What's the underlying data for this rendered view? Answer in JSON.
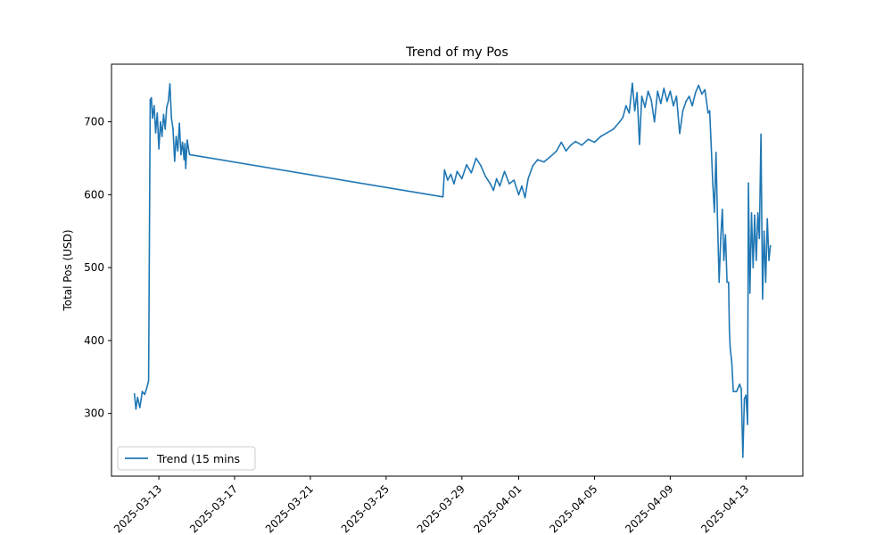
{
  "chart_data": {
    "type": "line",
    "title": "Trend of my Pos",
    "xlabel": "",
    "ylabel": "Total Pos (USD)",
    "xlim": [
      "2025-03-10T12:00",
      "2025-04-16T00:00"
    ],
    "ylim": [
      214,
      779
    ],
    "x_ticks": [
      "2025-03-13",
      "2025-03-17",
      "2025-03-21",
      "2025-03-25",
      "2025-03-29",
      "2025-04-01",
      "2025-04-05",
      "2025-04-09",
      "2025-04-13"
    ],
    "y_ticks": [
      300,
      400,
      500,
      600,
      700
    ],
    "grid": false,
    "legend_position": "lower-left",
    "color": "#1f77b4",
    "series": [
      {
        "name": "Trend (15 mins",
        "points": [
          [
            "2025-03-11T17:00",
            327
          ],
          [
            "2025-03-11T19:00",
            306
          ],
          [
            "2025-03-11T21:00",
            322
          ],
          [
            "2025-03-12T00:00",
            308
          ],
          [
            "2025-03-12T03:00",
            330
          ],
          [
            "2025-03-12T06:00",
            326
          ],
          [
            "2025-03-12T09:00",
            336
          ],
          [
            "2025-03-12T11:00",
            345
          ],
          [
            "2025-03-12T13:00",
            730
          ],
          [
            "2025-03-12T14:30",
            733
          ],
          [
            "2025-03-12T16:00",
            705
          ],
          [
            "2025-03-12T18:00",
            722
          ],
          [
            "2025-03-12T20:00",
            685
          ],
          [
            "2025-03-12T22:00",
            712
          ],
          [
            "2025-03-13T00:00",
            663
          ],
          [
            "2025-03-13T02:00",
            700
          ],
          [
            "2025-03-13T04:00",
            680
          ],
          [
            "2025-03-13T06:00",
            710
          ],
          [
            "2025-03-13T08:00",
            690
          ],
          [
            "2025-03-13T10:00",
            720
          ],
          [
            "2025-03-13T12:00",
            728
          ],
          [
            "2025-03-13T14:00",
            752
          ],
          [
            "2025-03-13T16:00",
            705
          ],
          [
            "2025-03-13T18:00",
            690
          ],
          [
            "2025-03-13T20:00",
            646
          ],
          [
            "2025-03-13T22:00",
            680
          ],
          [
            "2025-03-14T00:00",
            660
          ],
          [
            "2025-03-14T02:00",
            698
          ],
          [
            "2025-03-14T04:00",
            655
          ],
          [
            "2025-03-14T06:00",
            672
          ],
          [
            "2025-03-14T08:00",
            648
          ],
          [
            "2025-03-14T09:00",
            670
          ],
          [
            "2025-03-14T10:00",
            636
          ],
          [
            "2025-03-14T12:00",
            675
          ],
          [
            "2025-03-14T14:00",
            660
          ],
          [
            "2025-03-14T15:00",
            655
          ],
          [
            "2025-03-28T00:00",
            597
          ],
          [
            "2025-03-28T02:00",
            634
          ],
          [
            "2025-03-28T06:00",
            620
          ],
          [
            "2025-03-28T10:00",
            628
          ],
          [
            "2025-03-28T14:00",
            615
          ],
          [
            "2025-03-28T18:00",
            632
          ],
          [
            "2025-03-29T00:00",
            622
          ],
          [
            "2025-03-29T06:00",
            641
          ],
          [
            "2025-03-29T12:00",
            630
          ],
          [
            "2025-03-29T18:00",
            650
          ],
          [
            "2025-03-30T00:00",
            640
          ],
          [
            "2025-03-30T06:00",
            625
          ],
          [
            "2025-03-30T12:00",
            615
          ],
          [
            "2025-03-30T16:00",
            606
          ],
          [
            "2025-03-30T20:00",
            622
          ],
          [
            "2025-03-31T00:00",
            612
          ],
          [
            "2025-03-31T06:00",
            632
          ],
          [
            "2025-03-31T12:00",
            615
          ],
          [
            "2025-03-31T18:00",
            620
          ],
          [
            "2025-04-01T00:00",
            600
          ],
          [
            "2025-04-01T04:00",
            612
          ],
          [
            "2025-04-01T08:00",
            596
          ],
          [
            "2025-04-01T12:00",
            622
          ],
          [
            "2025-04-01T18:00",
            640
          ],
          [
            "2025-04-02T00:00",
            648
          ],
          [
            "2025-04-02T08:00",
            645
          ],
          [
            "2025-04-02T16:00",
            652
          ],
          [
            "2025-04-03T00:00",
            660
          ],
          [
            "2025-04-03T06:00",
            672
          ],
          [
            "2025-04-03T12:00",
            660
          ],
          [
            "2025-04-03T18:00",
            668
          ],
          [
            "2025-04-04T00:00",
            673
          ],
          [
            "2025-04-04T08:00",
            668
          ],
          [
            "2025-04-04T16:00",
            676
          ],
          [
            "2025-04-05T00:00",
            672
          ],
          [
            "2025-04-05T08:00",
            680
          ],
          [
            "2025-04-05T16:00",
            685
          ],
          [
            "2025-04-06T00:00",
            690
          ],
          [
            "2025-04-06T08:00",
            700
          ],
          [
            "2025-04-06T12:00",
            706
          ],
          [
            "2025-04-06T16:00",
            722
          ],
          [
            "2025-04-06T20:00",
            712
          ],
          [
            "2025-04-07T00:00",
            753
          ],
          [
            "2025-04-07T03:00",
            715
          ],
          [
            "2025-04-07T06:00",
            740
          ],
          [
            "2025-04-07T09:00",
            669
          ],
          [
            "2025-04-07T12:00",
            735
          ],
          [
            "2025-04-07T16:00",
            720
          ],
          [
            "2025-04-07T20:00",
            742
          ],
          [
            "2025-04-08T00:00",
            730
          ],
          [
            "2025-04-08T04:00",
            700
          ],
          [
            "2025-04-08T08:00",
            742
          ],
          [
            "2025-04-08T12:00",
            725
          ],
          [
            "2025-04-08T16:00",
            746
          ],
          [
            "2025-04-08T20:00",
            728
          ],
          [
            "2025-04-09T00:00",
            742
          ],
          [
            "2025-04-09T04:00",
            722
          ],
          [
            "2025-04-09T08:00",
            735
          ],
          [
            "2025-04-09T12:00",
            684
          ],
          [
            "2025-04-09T16:00",
            715
          ],
          [
            "2025-04-09T20:00",
            728
          ],
          [
            "2025-04-10T00:00",
            735
          ],
          [
            "2025-04-10T04:00",
            722
          ],
          [
            "2025-04-10T08:00",
            740
          ],
          [
            "2025-04-10T12:00",
            750
          ],
          [
            "2025-04-10T16:00",
            738
          ],
          [
            "2025-04-10T20:00",
            744
          ],
          [
            "2025-04-11T00:00",
            712
          ],
          [
            "2025-04-11T02:00",
            715
          ],
          [
            "2025-04-11T04:00",
            665
          ],
          [
            "2025-04-11T06:00",
            615
          ],
          [
            "2025-04-11T08:00",
            576
          ],
          [
            "2025-04-11T10:00",
            658
          ],
          [
            "2025-04-11T12:00",
            560
          ],
          [
            "2025-04-11T14:00",
            480
          ],
          [
            "2025-04-11T16:00",
            540
          ],
          [
            "2025-04-11T18:00",
            580
          ],
          [
            "2025-04-11T20:00",
            510
          ],
          [
            "2025-04-11T22:00",
            545
          ],
          [
            "2025-04-12T00:00",
            480
          ],
          [
            "2025-04-12T02:00",
            480
          ],
          [
            "2025-04-12T03:00",
            415
          ],
          [
            "2025-04-12T04:00",
            390
          ],
          [
            "2025-04-12T06:00",
            370
          ],
          [
            "2025-04-12T08:00",
            330
          ],
          [
            "2025-04-12T12:00",
            330
          ],
          [
            "2025-04-12T16:00",
            340
          ],
          [
            "2025-04-12T18:00",
            334
          ],
          [
            "2025-04-12T20:00",
            240
          ],
          [
            "2025-04-12T22:00",
            320
          ],
          [
            "2025-04-13T00:00",
            325
          ],
          [
            "2025-04-13T02:00",
            285
          ],
          [
            "2025-04-13T03:00",
            616
          ],
          [
            "2025-04-13T05:00",
            465
          ],
          [
            "2025-04-13T07:00",
            575
          ],
          [
            "2025-04-13T09:00",
            500
          ],
          [
            "2025-04-13T11:00",
            572
          ],
          [
            "2025-04-13T13:00",
            510
          ],
          [
            "2025-04-13T15:00",
            575
          ],
          [
            "2025-04-13T17:00",
            540
          ],
          [
            "2025-04-13T19:00",
            683
          ],
          [
            "2025-04-13T21:00",
            457
          ],
          [
            "2025-04-13T23:00",
            550
          ],
          [
            "2025-04-14T01:00",
            480
          ],
          [
            "2025-04-14T03:00",
            567
          ],
          [
            "2025-04-14T05:00",
            510
          ],
          [
            "2025-04-14T07:00",
            530
          ]
        ]
      }
    ]
  }
}
